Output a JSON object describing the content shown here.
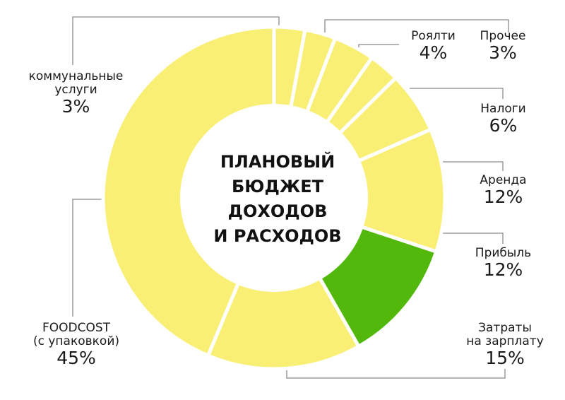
{
  "title_lines": [
    "ПЛАНОВЫЙ",
    "БЮДЖЕТ",
    "ДОХОДОВ",
    "И РАСХОДОВ"
  ],
  "colors": {
    "slice": "#f9ef75",
    "highlight": "#52b80c",
    "leader": "#8a8a8a",
    "text": "#1a1a1a"
  },
  "chart_data": {
    "type": "pie",
    "title": "ПЛАНОВЫЙ БЮДЖЕТ ДОХОДОВ И РАСХОДОВ",
    "labels": [
      "коммунальные услуги",
      "",
      "Роялти",
      "Прочее",
      "Налоги",
      "Аренда",
      "Прибыль",
      "Затраты на зарплату",
      "FOODCOST (с упаковкой)"
    ],
    "values": [
      3,
      3,
      4,
      3,
      6,
      12,
      12,
      15,
      45
    ],
    "display": [
      {
        "name": [
          "коммунальные",
          "услуги"
        ],
        "pct": "3%"
      },
      {
        "name": [],
        "pct": ""
      },
      {
        "name": [
          "Роялти"
        ],
        "pct": "4%"
      },
      {
        "name": [
          "Прочее"
        ],
        "pct": "3%"
      },
      {
        "name": [
          "Налоги"
        ],
        "pct": "6%"
      },
      {
        "name": [
          "Аренда"
        ],
        "pct": "12%"
      },
      {
        "name": [
          "Прибыль"
        ],
        "pct": "12%"
      },
      {
        "name": [
          "Затраты",
          "на зарплату"
        ],
        "pct": "15%"
      },
      {
        "name": [
          "FOODCOST",
          "(с упаковкой)"
        ],
        "pct": "45%"
      }
    ],
    "highlight_label": "Прибыль"
  }
}
